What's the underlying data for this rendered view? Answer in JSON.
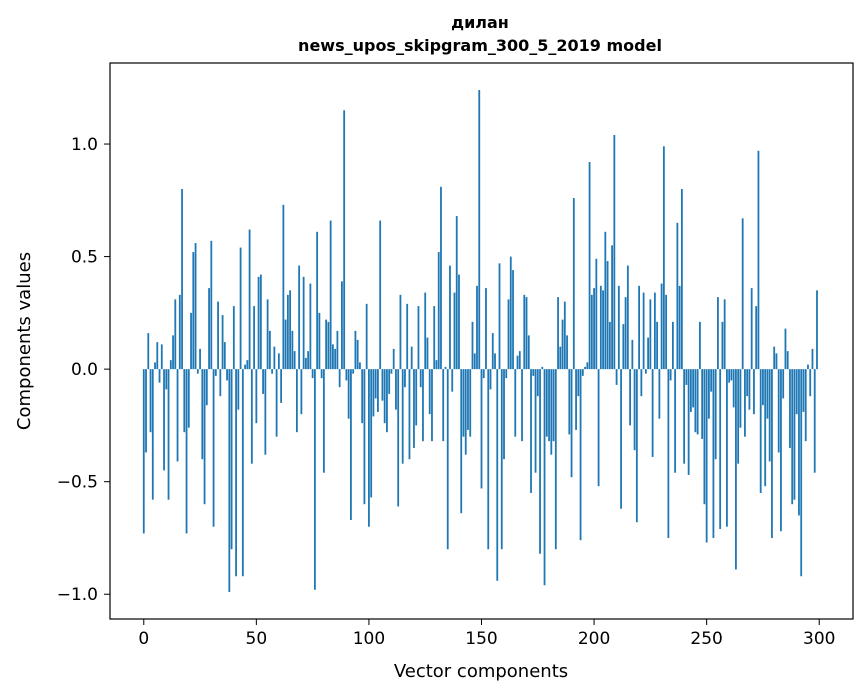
{
  "chart_data": {
    "type": "bar",
    "title": "дилан",
    "subtitle": "news_upos_skipgram_300_5_2019 model",
    "xlabel": "Vector components",
    "ylabel": "Components values",
    "xlim": [
      -15,
      315
    ],
    "ylim": [
      -1.11,
      1.36
    ],
    "x_ticks": [
      0,
      50,
      100,
      150,
      200,
      250,
      300
    ],
    "x_tick_labels": [
      "0",
      "50",
      "100",
      "150",
      "200",
      "250",
      "300"
    ],
    "y_ticks": [
      -1.0,
      -0.5,
      0.0,
      0.5,
      1.0
    ],
    "y_tick_labels": [
      "−1.0",
      "−0.5",
      "0.0",
      "0.5",
      "1.0"
    ],
    "grid": false,
    "color": "#1f77b4",
    "values": [
      -0.73,
      -0.37,
      0.16,
      -0.28,
      -0.58,
      0.03,
      0.12,
      -0.06,
      0.11,
      -0.45,
      -0.09,
      -0.58,
      0.04,
      0.15,
      0.31,
      -0.41,
      0.33,
      0.8,
      -0.28,
      -0.73,
      -0.26,
      0.25,
      0.52,
      0.56,
      -0.02,
      0.09,
      -0.4,
      -0.6,
      -0.16,
      0.36,
      0.57,
      -0.7,
      -0.03,
      0.3,
      -0.12,
      0.24,
      0.12,
      -0.05,
      -0.99,
      -0.8,
      0.28,
      -0.92,
      -0.18,
      0.54,
      -0.92,
      0.02,
      0.04,
      0.62,
      -0.42,
      0.28,
      -0.24,
      0.41,
      0.42,
      -0.11,
      -0.38,
      0.31,
      0.17,
      -0.02,
      0.1,
      -0.3,
      0.07,
      -0.15,
      0.73,
      0.22,
      0.33,
      0.35,
      0.17,
      0.08,
      -0.28,
      0.46,
      -0.2,
      0.41,
      0.05,
      0.08,
      0.38,
      -0.04,
      -0.98,
      0.61,
      0.25,
      -0.04,
      -0.46,
      0.22,
      0.21,
      0.66,
      0.11,
      0.09,
      0.17,
      -0.08,
      0.39,
      1.15,
      -0.05,
      -0.22,
      -0.67,
      -0.02,
      0.17,
      0.13,
      0.03,
      -0.24,
      -0.6,
      0.29,
      -0.7,
      -0.57,
      -0.21,
      -0.13,
      -0.19,
      0.66,
      -0.14,
      -0.24,
      -0.28,
      -0.11,
      -0.02,
      0.09,
      -0.18,
      -0.61,
      0.33,
      -0.42,
      -0.08,
      0.29,
      -0.4,
      0.1,
      -0.35,
      -0.25,
      0.28,
      -0.08,
      -0.32,
      0.34,
      0.14,
      -0.2,
      -0.32,
      0.28,
      0.04,
      0.52,
      0.81,
      -0.32,
      0.01,
      -0.8,
      0.46,
      -0.1,
      0.34,
      0.68,
      0.42,
      -0.64,
      -0.3,
      -0.38,
      -0.27,
      -0.3,
      0.21,
      0.07,
      0.37,
      1.24,
      -0.53,
      -0.04,
      0.36,
      -0.8,
      -0.09,
      0.16,
      0.07,
      -0.94,
      0.47,
      -0.8,
      -0.4,
      -0.04,
      0.31,
      0.5,
      0.44,
      -0.3,
      0.06,
      0.08,
      -0.32,
      0.33,
      0.32,
      0.15,
      -0.55,
      -0.03,
      -0.46,
      -0.12,
      -0.82,
      0.01,
      -0.96,
      -0.3,
      -0.32,
      -0.38,
      -0.32,
      -0.8,
      0.32,
      0.1,
      0.22,
      0.3,
      0.15,
      -0.29,
      -0.48,
      0.76,
      -0.27,
      -0.12,
      -0.76,
      -0.03,
      0.01,
      0.03,
      0.92,
      0.33,
      0.36,
      0.49,
      -0.52,
      0.37,
      0.35,
      0.61,
      0.48,
      0.21,
      0.55,
      1.04,
      -0.07,
      0.37,
      -0.62,
      0.2,
      0.32,
      0.46,
      -0.25,
      0.13,
      -0.36,
      -0.68,
      0.37,
      -0.12,
      0.34,
      -0.02,
      0.14,
      0.31,
      -0.39,
      0.34,
      0.21,
      -0.22,
      0.38,
      0.99,
      0.33,
      -0.75,
      -0.05,
      0.21,
      -0.46,
      0.65,
      0.37,
      0.8,
      -0.42,
      -0.07,
      -0.47,
      -0.19,
      -0.17,
      -0.28,
      -0.29,
      0.21,
      -0.31,
      -0.6,
      -0.77,
      -0.22,
      -0.1,
      -0.75,
      -0.4,
      0.32,
      -0.71,
      0.21,
      0.31,
      -0.7,
      -0.06,
      -0.05,
      -0.17,
      -0.89,
      -0.42,
      -0.26,
      0.67,
      -0.3,
      -0.12,
      -0.18,
      0.36,
      -0.2,
      0.28,
      0.97,
      -0.55,
      -0.16,
      -0.52,
      -0.22,
      -0.41,
      -0.75,
      0.1,
      0.07,
      -0.37,
      -0.72,
      -0.13,
      0.18,
      0.08,
      -0.35,
      -0.6,
      -0.58,
      -0.2,
      -0.65,
      -0.92,
      -0.19,
      -0.32,
      0.02,
      -0.12,
      0.09,
      -0.46,
      0.35
    ]
  }
}
